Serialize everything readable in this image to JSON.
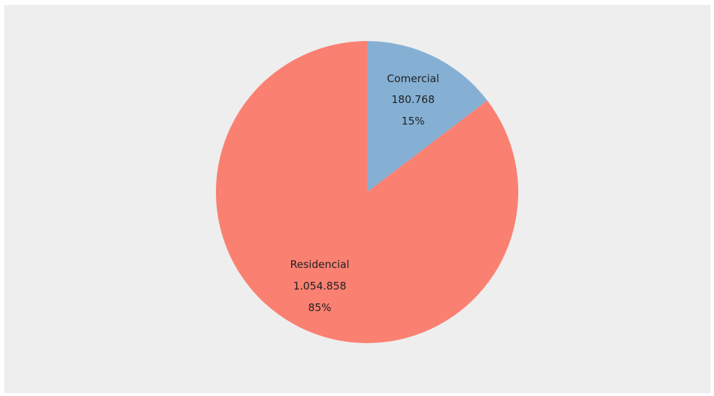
{
  "chart_data": {
    "type": "pie",
    "title": "",
    "slices": [
      {
        "label": "Comercial",
        "value": 180768,
        "value_text": "180.768",
        "percent": 15,
        "percent_text": "15%",
        "color": "#85b0d4"
      },
      {
        "label": "Residencial",
        "value": 1054858,
        "value_text": "1.054.858",
        "percent": 85,
        "percent_text": "85%",
        "color": "#fa8072"
      }
    ],
    "start": "top",
    "direction": "clockwise",
    "background": "#eeeeee"
  }
}
